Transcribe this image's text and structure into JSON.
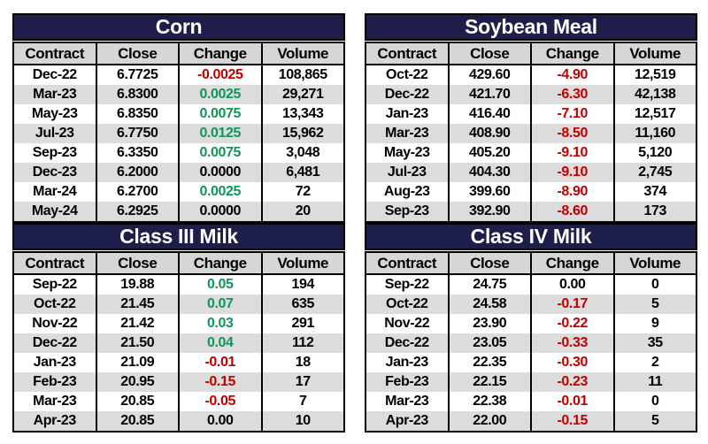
{
  "colors": {
    "title_bar_bg": "#1e1e4b",
    "title_text": "#ffffff",
    "header_bg": "#d6d6d6",
    "alt_row_bg": "#dcdcdc",
    "negative_change": "#c00000",
    "positive_change": "#12955a",
    "zero_change": "#000000",
    "border": "#000000"
  },
  "chart_data": [
    {
      "type": "table",
      "title": "Corn",
      "columns": [
        "Contract",
        "Close",
        "Change",
        "Volume"
      ],
      "rows": [
        {
          "contract": "Dec-22",
          "close": "6.7725",
          "change": "-0.0025",
          "change_color": "red",
          "volume": "108,865"
        },
        {
          "contract": "Mar-23",
          "close": "6.8300",
          "change": "0.0025",
          "change_color": "green",
          "volume": "29,271"
        },
        {
          "contract": "May-23",
          "close": "6.8350",
          "change": "0.0075",
          "change_color": "green",
          "volume": "13,343"
        },
        {
          "contract": "Jul-23",
          "close": "6.7750",
          "change": "0.0125",
          "change_color": "green",
          "volume": "15,962"
        },
        {
          "contract": "Sep-23",
          "close": "6.3350",
          "change": "0.0075",
          "change_color": "green",
          "volume": "3,048"
        },
        {
          "contract": "Dec-23",
          "close": "6.2000",
          "change": "0.0000",
          "change_color": "black",
          "volume": "6,481"
        },
        {
          "contract": "Mar-24",
          "close": "6.2700",
          "change": "0.0025",
          "change_color": "green",
          "volume": "72"
        },
        {
          "contract": "May-24",
          "close": "6.2925",
          "change": "0.0000",
          "change_color": "black",
          "volume": "20"
        }
      ]
    },
    {
      "type": "table",
      "title": "Soybean Meal",
      "columns": [
        "Contract",
        "Close",
        "Change",
        "Volume"
      ],
      "rows": [
        {
          "contract": "Oct-22",
          "close": "429.60",
          "change": "-4.90",
          "change_color": "red",
          "volume": "12,519"
        },
        {
          "contract": "Dec-22",
          "close": "421.70",
          "change": "-6.30",
          "change_color": "red",
          "volume": "42,138"
        },
        {
          "contract": "Jan-23",
          "close": "416.40",
          "change": "-7.10",
          "change_color": "red",
          "volume": "12,517"
        },
        {
          "contract": "Mar-23",
          "close": "408.90",
          "change": "-8.50",
          "change_color": "red",
          "volume": "11,160"
        },
        {
          "contract": "May-23",
          "close": "405.20",
          "change": "-9.10",
          "change_color": "red",
          "volume": "5,120"
        },
        {
          "contract": "Jul-23",
          "close": "404.30",
          "change": "-9.10",
          "change_color": "red",
          "volume": "2,745"
        },
        {
          "contract": "Aug-23",
          "close": "399.60",
          "change": "-8.90",
          "change_color": "red",
          "volume": "374"
        },
        {
          "contract": "Sep-23",
          "close": "392.90",
          "change": "-8.60",
          "change_color": "red",
          "volume": "173"
        }
      ]
    },
    {
      "type": "table",
      "title": "Class III Milk",
      "columns": [
        "Contract",
        "Close",
        "Change",
        "Volume"
      ],
      "rows": [
        {
          "contract": "Sep-22",
          "close": "19.88",
          "change": "0.05",
          "change_color": "green",
          "volume": "194"
        },
        {
          "contract": "Oct-22",
          "close": "21.45",
          "change": "0.07",
          "change_color": "green",
          "volume": "635"
        },
        {
          "contract": "Nov-22",
          "close": "21.42",
          "change": "0.03",
          "change_color": "green",
          "volume": "291"
        },
        {
          "contract": "Dec-22",
          "close": "21.50",
          "change": "0.04",
          "change_color": "green",
          "volume": "112"
        },
        {
          "contract": "Jan-23",
          "close": "21.09",
          "change": "-0.01",
          "change_color": "red",
          "volume": "18"
        },
        {
          "contract": "Feb-23",
          "close": "20.95",
          "change": "-0.15",
          "change_color": "red",
          "volume": "17"
        },
        {
          "contract": "Mar-23",
          "close": "20.85",
          "change": "-0.05",
          "change_color": "red",
          "volume": "7"
        },
        {
          "contract": "Apr-23",
          "close": "20.85",
          "change": "0.00",
          "change_color": "black",
          "volume": "10"
        }
      ]
    },
    {
      "type": "table",
      "title": "Class IV Milk",
      "columns": [
        "Contract",
        "Close",
        "Change",
        "Volume"
      ],
      "rows": [
        {
          "contract": "Sep-22",
          "close": "24.75",
          "change": "0.00",
          "change_color": "black",
          "volume": "0"
        },
        {
          "contract": "Oct-22",
          "close": "24.58",
          "change": "-0.17",
          "change_color": "red",
          "volume": "5"
        },
        {
          "contract": "Nov-22",
          "close": "23.90",
          "change": "-0.22",
          "change_color": "red",
          "volume": "9"
        },
        {
          "contract": "Dec-22",
          "close": "23.05",
          "change": "-0.33",
          "change_color": "red",
          "volume": "35"
        },
        {
          "contract": "Jan-23",
          "close": "22.35",
          "change": "-0.30",
          "change_color": "red",
          "volume": "2"
        },
        {
          "contract": "Feb-23",
          "close": "22.15",
          "change": "-0.23",
          "change_color": "red",
          "volume": "11"
        },
        {
          "contract": "Mar-23",
          "close": "22.38",
          "change": "-0.01",
          "change_color": "red",
          "volume": "0"
        },
        {
          "contract": "Apr-23",
          "close": "22.00",
          "change": "-0.15",
          "change_color": "red",
          "volume": "5"
        }
      ]
    }
  ]
}
